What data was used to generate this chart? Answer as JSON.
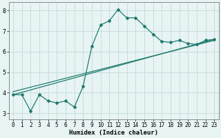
{
  "title": "",
  "xlabel": "Humidex (Indice chaleur)",
  "ylabel": "",
  "bg_color": "#e8f4f4",
  "grid_color": "#c8dede",
  "line_color": "#1e7b6e",
  "x_data": [
    0,
    1,
    2,
    3,
    4,
    5,
    6,
    7,
    8,
    9,
    10,
    11,
    12,
    13,
    14,
    15,
    16,
    17,
    18,
    19,
    20,
    21,
    22,
    23
  ],
  "y_main": [
    3.9,
    3.9,
    3.1,
    3.9,
    3.6,
    3.5,
    3.6,
    3.3,
    4.3,
    6.25,
    7.3,
    7.5,
    8.05,
    7.65,
    7.65,
    7.25,
    6.85,
    6.5,
    6.45,
    6.55,
    6.4,
    6.35,
    6.55,
    6.6
  ],
  "line1": [
    [
      0,
      3.9
    ],
    [
      23,
      6.6
    ]
  ],
  "line2": [
    [
      0,
      4.05
    ],
    [
      23,
      6.55
    ]
  ],
  "ylim": [
    2.7,
    8.4
  ],
  "xlim": [
    -0.5,
    23.5
  ],
  "yticks": [
    3,
    4,
    5,
    6,
    7,
    8
  ],
  "xticks": [
    0,
    1,
    2,
    3,
    4,
    5,
    6,
    7,
    8,
    9,
    10,
    11,
    12,
    13,
    14,
    15,
    16,
    17,
    18,
    19,
    20,
    21,
    22,
    23
  ],
  "xlabel_fontsize": 6.5,
  "tick_fontsize": 5.5
}
